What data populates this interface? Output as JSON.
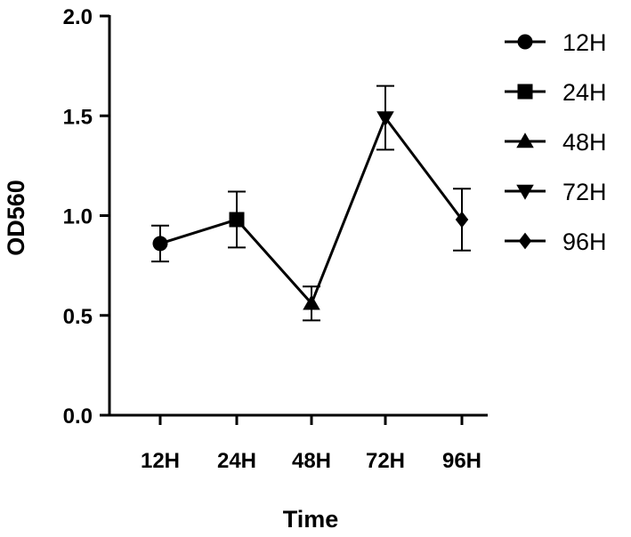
{
  "chart_data": {
    "type": "line",
    "categories": [
      "12H",
      "24H",
      "48H",
      "72H",
      "96H"
    ],
    "values": [
      0.86,
      0.98,
      0.56,
      1.49,
      0.98
    ],
    "error": [
      0.09,
      0.14,
      0.085,
      0.16,
      0.155
    ],
    "markers": [
      "circle",
      "square",
      "triangle-up",
      "triangle-down",
      "diamond"
    ],
    "xlabel": "Time",
    "ylabel": "OD560",
    "ylim": [
      0,
      2.0
    ],
    "yticks": [
      "0.0",
      "0.5",
      "1.0",
      "1.5",
      "2.0"
    ],
    "legend": {
      "position": "top-right",
      "entries": [
        "12H",
        "24H",
        "48H",
        "72H",
        "96H"
      ]
    },
    "grid": false,
    "color": "#000000"
  }
}
